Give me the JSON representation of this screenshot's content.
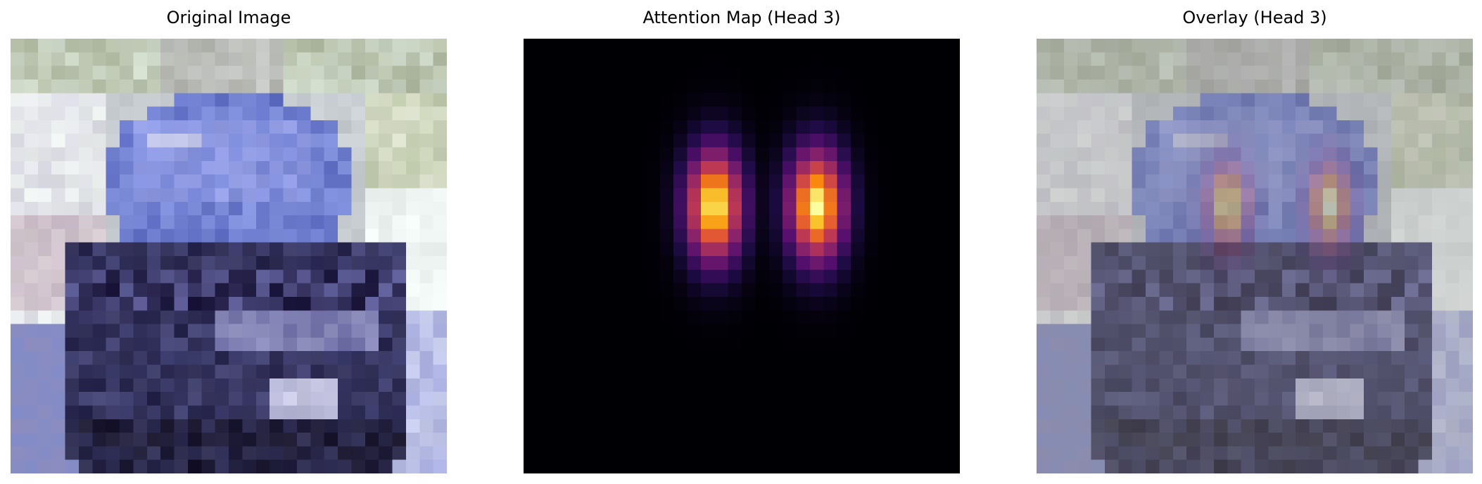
{
  "panels": [
    {
      "id": "original",
      "title": "Original Image"
    },
    {
      "id": "attention",
      "title": "Attention Map (Head 3)"
    },
    {
      "id": "overlay",
      "title": "Overlay (Head 3)"
    }
  ],
  "colors": {
    "background": "#ffffff",
    "attention_base": "#000004",
    "attention_peak": "#fcffa4",
    "car_body": "#5c64b0",
    "car_dark": "#1c1a3a",
    "sky_light": "#eef3ee",
    "foliage": "#a8b898"
  }
}
